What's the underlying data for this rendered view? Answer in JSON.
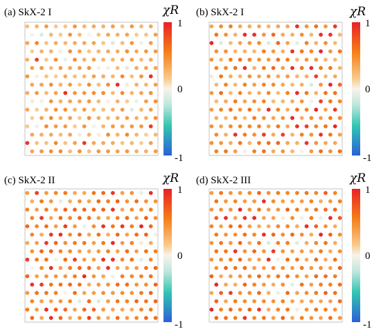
{
  "chart_data": [
    {
      "type": "scatter",
      "title": "(a) SkX-2 I",
      "colorbar": {
        "label": "χR",
        "ticks": [
          "1",
          "0",
          "-1"
        ],
        "range": [
          -1,
          1
        ]
      },
      "lattice": "triangular",
      "rows": 16,
      "cols": 14,
      "value_pattern": {
        "base": 0.32,
        "variation": 0.18,
        "strong_fraction": 0.03,
        "weak_fraction": 0.08,
        "seed": 11
      }
    },
    {
      "type": "scatter",
      "title": "(b) SkX-2 I",
      "colorbar": {
        "label": "χR",
        "ticks": [
          "1",
          "0",
          "-1"
        ],
        "range": [
          -1,
          1
        ]
      },
      "lattice": "triangular",
      "rows": 16,
      "cols": 14,
      "value_pattern": {
        "base": 0.45,
        "variation": 0.22,
        "strong_fraction": 0.09,
        "weak_fraction": 0.05,
        "seed": 23
      }
    },
    {
      "type": "scatter",
      "title": "(c) SkX-2 II",
      "colorbar": {
        "label": "χR",
        "ticks": [
          "1",
          "0",
          "-1"
        ],
        "range": [
          -1,
          1
        ]
      },
      "lattice": "triangular",
      "rows": 16,
      "cols": 14,
      "value_pattern": {
        "base": 0.5,
        "variation": 0.2,
        "strong_fraction": 0.1,
        "weak_fraction": 0.05,
        "seed": 37
      }
    },
    {
      "type": "scatter",
      "title": "(d) SkX-2 III",
      "colorbar": {
        "label": "χR",
        "ticks": [
          "1",
          "0",
          "-1"
        ],
        "range": [
          -1,
          1
        ]
      },
      "lattice": "triangular",
      "rows": 16,
      "cols": 14,
      "value_pattern": {
        "base": 0.5,
        "variation": 0.2,
        "strong_fraction": 0.08,
        "weak_fraction": 0.04,
        "seed": 51
      }
    }
  ]
}
